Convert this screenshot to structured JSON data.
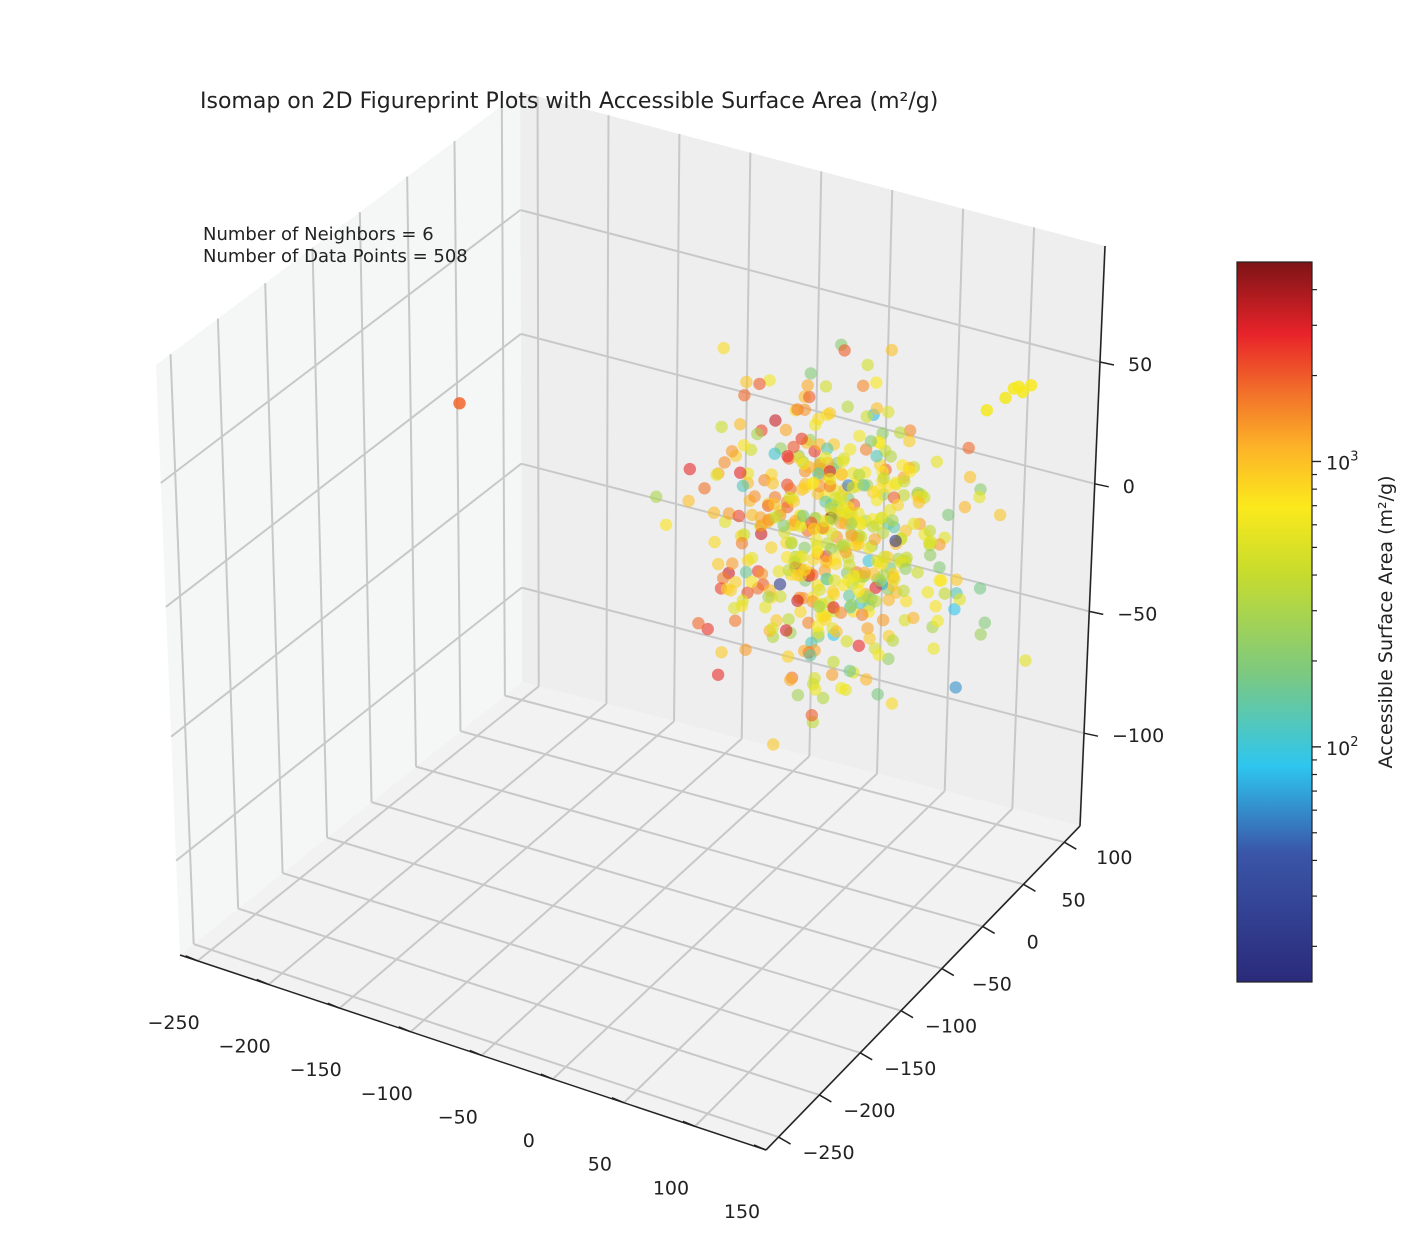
{
  "chart_data": {
    "type": "scatter",
    "projection": "3d",
    "title": "Isomap on 2D Figureprint Plots with Accessible Surface Area (m²/g)",
    "annotations": [
      "Number of Neighbors = 6",
      "Number of Data Points = 508"
    ],
    "xlim": [
      -270,
      150
    ],
    "ylim": [
      -270,
      120
    ],
    "zlim": [
      -140,
      90
    ],
    "x_ticks": [
      "−250",
      "−200",
      "−150",
      "−100",
      "−50",
      "0",
      "50",
      "100",
      "150"
    ],
    "y_ticks": [
      "−250",
      "−200",
      "−150",
      "−100",
      "−50",
      "0",
      "50",
      "100"
    ],
    "z_ticks": [
      "−100",
      "−50",
      "0",
      "50"
    ],
    "colorbar": {
      "label": "Accessible Surface Area (m²/g)",
      "scale": "log",
      "range": [
        15,
        5000
      ],
      "major_ticks": [
        {
          "base": "10",
          "exp": "2"
        },
        {
          "base": "10",
          "exp": "3"
        }
      ],
      "colormap": [
        "#2b2a7a",
        "#3a56a8",
        "#2ec6ef",
        "#7dc97f",
        "#c8dc2c",
        "#fbe91c",
        "#fdb528",
        "#f26f2a",
        "#e8232a",
        "#7d1416"
      ]
    },
    "grid": true,
    "points_count": 508,
    "points": [
      {
        "x": -250,
        "y": 0,
        "z": 5,
        "v": 1500
      },
      {
        "x": 120,
        "y": 60,
        "z": 60,
        "v": 350
      },
      {
        "x": 115,
        "y": 58,
        "z": 61,
        "v": 360
      },
      {
        "x": 118,
        "y": 59,
        "z": 62,
        "v": 355
      },
      {
        "x": 110,
        "y": 56,
        "z": 57,
        "v": 340
      },
      {
        "x": 125,
        "y": 62,
        "z": 63,
        "v": 370
      },
      {
        "x": 100,
        "y": 50,
        "z": 52,
        "v": 350
      }
    ]
  }
}
